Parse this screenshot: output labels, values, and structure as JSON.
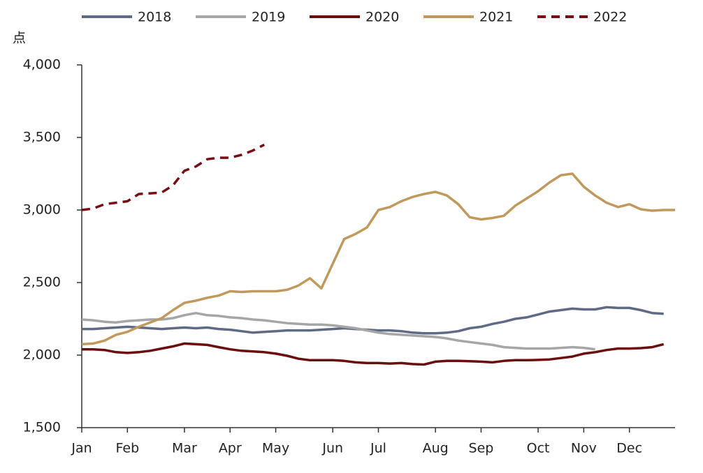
{
  "chart_data": {
    "type": "line",
    "y_label": "点",
    "categories": [
      "Jan",
      null,
      null,
      null,
      "Feb",
      null,
      null,
      null,
      null,
      "Mar",
      null,
      null,
      null,
      "Apr",
      null,
      null,
      null,
      "May",
      null,
      null,
      null,
      null,
      "Jun",
      null,
      null,
      null,
      "Jul",
      null,
      null,
      null,
      null,
      "Aug",
      null,
      null,
      null,
      "Sep",
      null,
      null,
      null,
      null,
      "Oct",
      null,
      null,
      null,
      "Nov",
      null,
      null,
      null,
      "Dec",
      null,
      null,
      null,
      null
    ],
    "ylim": [
      1500,
      4000
    ],
    "yticks": [
      {
        "value": 1500,
        "label": "1,500"
      },
      {
        "value": 2000,
        "label": "2,000"
      },
      {
        "value": 2500,
        "label": "2,500"
      },
      {
        "value": 3000,
        "label": "3,000"
      },
      {
        "value": 3500,
        "label": "3,500"
      },
      {
        "value": 4000,
        "label": "4,000"
      }
    ],
    "grid": false,
    "legend": "top",
    "series": [
      {
        "name": "2018",
        "color": "#5f6b86",
        "dashed": false,
        "values": [
          2180,
          2180,
          2185,
          2190,
          2195,
          2190,
          2185,
          2180,
          2185,
          2190,
          2185,
          2190,
          2180,
          2175,
          2165,
          2155,
          2160,
          2165,
          2170,
          2170,
          2170,
          2175,
          2180,
          2185,
          2180,
          2175,
          2170,
          2170,
          2165,
          2155,
          2150,
          2150,
          2155,
          2165,
          2185,
          2195,
          2215,
          2230,
          2250,
          2260,
          2280,
          2300,
          2310,
          2320,
          2315,
          2315,
          2330,
          2325,
          2325,
          2310,
          2290,
          2285,
          null
        ]
      },
      {
        "name": "2019",
        "color": "#a6a6a6",
        "dashed": false,
        "values": [
          2245,
          2240,
          2230,
          2225,
          2235,
          2240,
          2245,
          2245,
          2255,
          2275,
          2290,
          2275,
          2270,
          2260,
          2255,
          2245,
          2240,
          2230,
          2220,
          2215,
          2210,
          2210,
          2205,
          2195,
          2185,
          2170,
          2155,
          2145,
          2140,
          2135,
          2130,
          2125,
          2115,
          2100,
          2090,
          2080,
          2070,
          2055,
          2050,
          2045,
          2045,
          2045,
          2050,
          2055,
          2050,
          2040,
          null,
          null,
          null,
          null,
          null,
          null,
          null
        ]
      },
      {
        "name": "2020",
        "color": "#6b0e0e",
        "dashed": false,
        "values": [
          2040,
          2040,
          2035,
          2020,
          2015,
          2020,
          2030,
          2045,
          2060,
          2080,
          2075,
          2070,
          2055,
          2040,
          2030,
          2025,
          2020,
          2010,
          1995,
          1975,
          1965,
          1965,
          1965,
          1960,
          1950,
          1945,
          1945,
          1942,
          1945,
          1938,
          1935,
          1955,
          1960,
          1960,
          1958,
          1955,
          1950,
          1960,
          1965,
          1965,
          1967,
          1970,
          1980,
          1990,
          2010,
          2020,
          2035,
          2045,
          2045,
          2048,
          2055,
          2075,
          null
        ]
      },
      {
        "name": "2021",
        "color": "#c19a5b",
        "dashed": false,
        "values": [
          2075,
          2080,
          2100,
          2140,
          2160,
          2195,
          2225,
          2255,
          2310,
          2360,
          2375,
          2395,
          2410,
          2440,
          2435,
          2440,
          2440,
          2440,
          2450,
          2480,
          2530,
          2460,
          2630,
          2800,
          2835,
          2880,
          3000,
          3020,
          3060,
          3090,
          3110,
          3125,
          3100,
          3040,
          2950,
          2935,
          2945,
          2960,
          3030,
          3080,
          3130,
          3190,
          3240,
          3250,
          3160,
          3100,
          3050,
          3020,
          3040,
          3005,
          2995,
          3000,
          3000
        ]
      },
      {
        "name": "2022",
        "color": "#7b0d12",
        "dashed": true,
        "values": [
          3000,
          3010,
          3040,
          3050,
          3060,
          3110,
          3115,
          3120,
          3170,
          3270,
          3300,
          3350,
          3360,
          3360,
          3380,
          3410,
          3450,
          null,
          null,
          null,
          null,
          null,
          null,
          null,
          null,
          null,
          null,
          null,
          null,
          null,
          null,
          null,
          null,
          null,
          null,
          null,
          null,
          null,
          null,
          null,
          null,
          null,
          null,
          null,
          null,
          null,
          null,
          null,
          null,
          null,
          null,
          null,
          null
        ]
      }
    ]
  }
}
